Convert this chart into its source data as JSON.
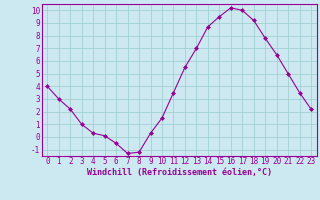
{
  "x": [
    0,
    1,
    2,
    3,
    4,
    5,
    6,
    7,
    8,
    9,
    10,
    11,
    12,
    13,
    14,
    15,
    16,
    17,
    18,
    19,
    20,
    21,
    22,
    23
  ],
  "y": [
    4,
    3,
    2.2,
    1,
    0.3,
    0.1,
    -0.5,
    -1.3,
    -1.2,
    0.3,
    1.5,
    3.5,
    5.5,
    7,
    8.7,
    9.5,
    10.2,
    10,
    9.2,
    7.8,
    6.5,
    5,
    3.5,
    2.2
  ],
  "line_color": "#990099",
  "marker": "D",
  "marker_size": 2.0,
  "background_color": "#cce8f0",
  "grid_color": "#99cccc",
  "xlabel": "Windchill (Refroidissement éolien,°C)",
  "xlim": [
    -0.5,
    23.5
  ],
  "ylim": [
    -1.5,
    10.5
  ],
  "yticks": [
    -1,
    0,
    1,
    2,
    3,
    4,
    5,
    6,
    7,
    8,
    9,
    10
  ],
  "xticks": [
    0,
    1,
    2,
    3,
    4,
    5,
    6,
    7,
    8,
    9,
    10,
    11,
    12,
    13,
    14,
    15,
    16,
    17,
    18,
    19,
    20,
    21,
    22,
    23
  ],
  "tick_fontsize": 5.5,
  "xlabel_fontsize": 6.0
}
